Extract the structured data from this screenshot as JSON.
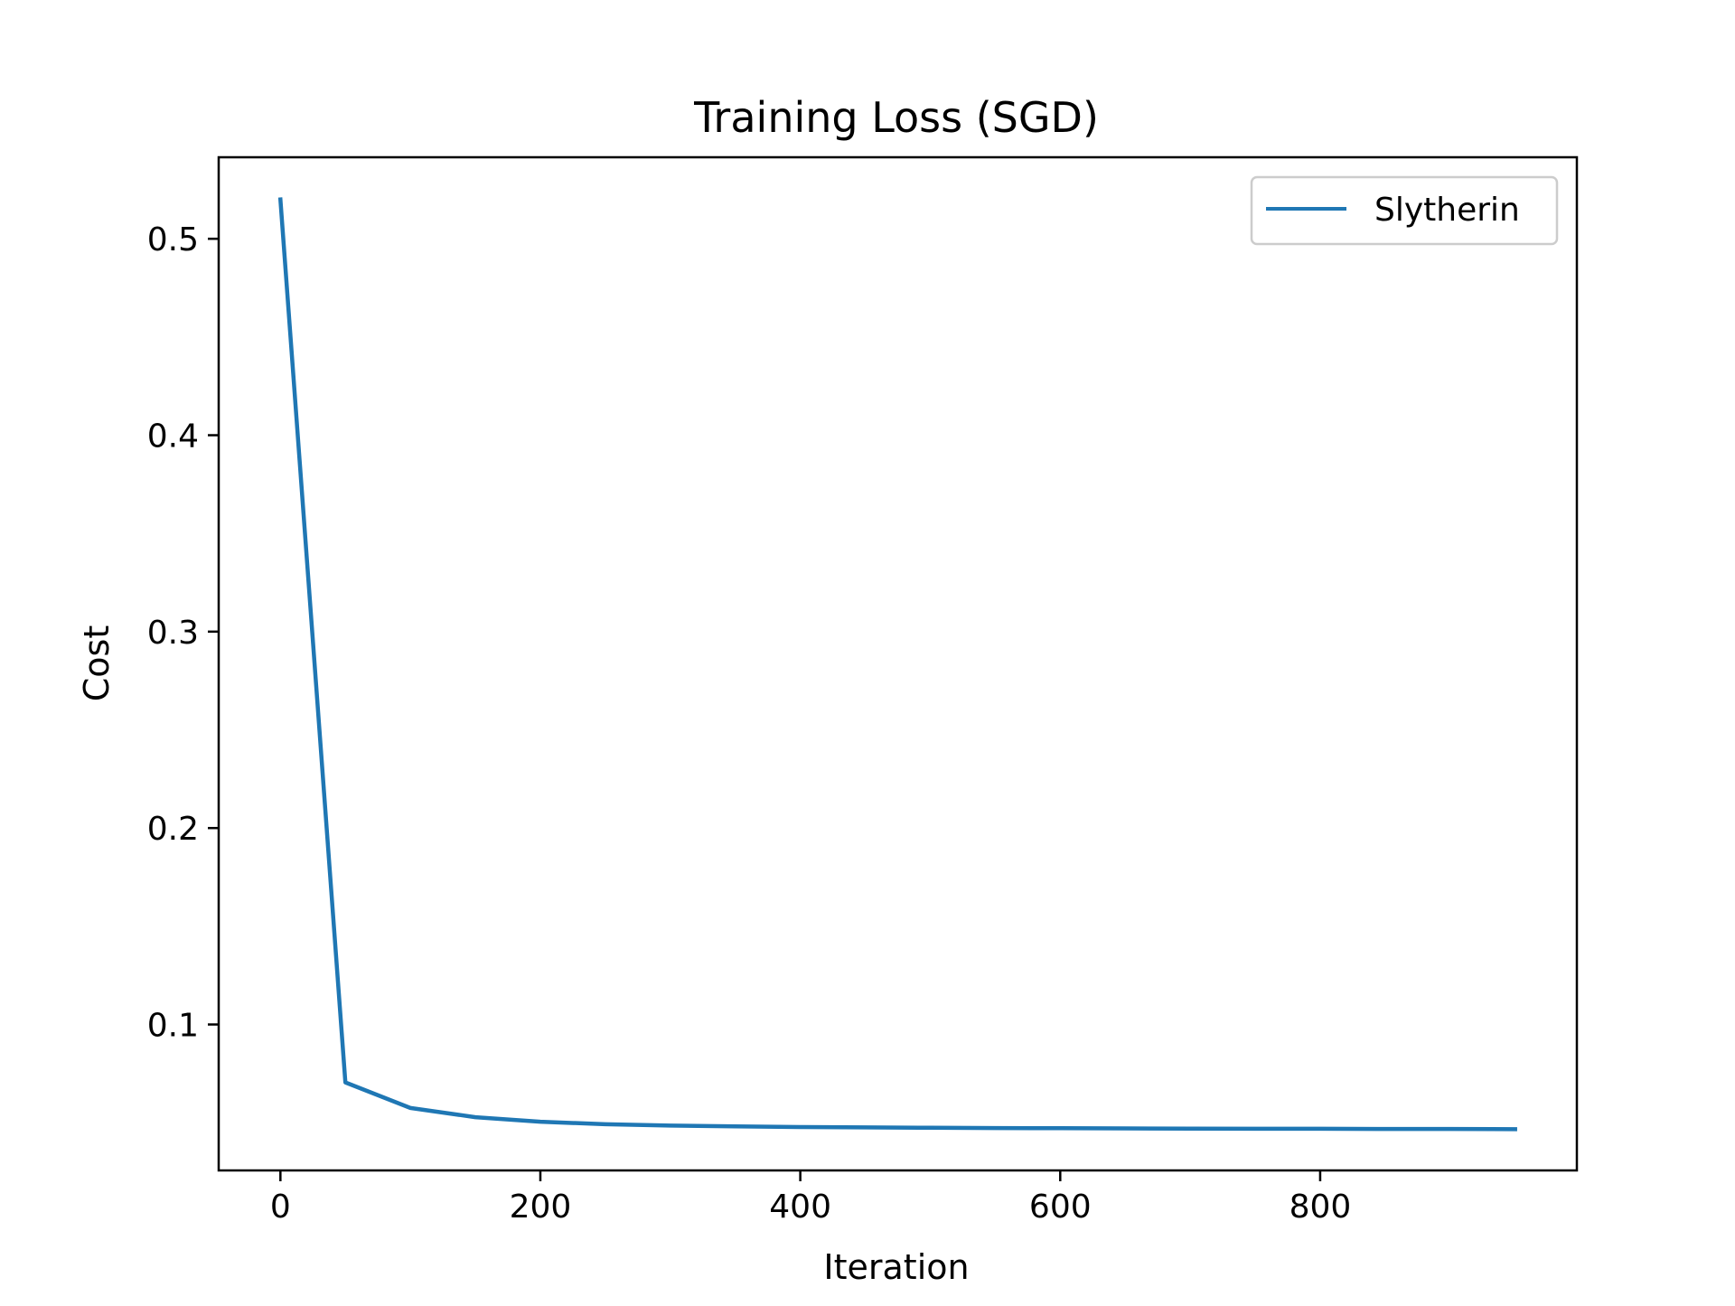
{
  "chart_data": {
    "type": "line",
    "title": "Training Loss (SGD)",
    "xlabel": "Iteration",
    "ylabel": "Cost",
    "xlim": [
      -47.5,
      997.5
    ],
    "ylim": [
      0.0257,
      0.5415
    ],
    "xticks": [
      0,
      200,
      400,
      600,
      800
    ],
    "yticks": [
      0.1,
      0.2,
      0.3,
      0.4,
      0.5
    ],
    "grid": false,
    "legend": {
      "placement": "top-right"
    },
    "series": [
      {
        "name": "Slytherin",
        "color": "#1f77b4",
        "x": [
          0,
          50,
          100,
          150,
          200,
          250,
          300,
          350,
          400,
          450,
          500,
          550,
          600,
          650,
          700,
          750,
          800,
          850,
          900,
          950
        ],
        "y": [
          0.52,
          0.0705,
          0.0575,
          0.0528,
          0.0505,
          0.0492,
          0.0485,
          0.0481,
          0.0478,
          0.0476,
          0.0474,
          0.0473,
          0.0472,
          0.0471,
          0.047,
          0.0469,
          0.0469,
          0.0468,
          0.0468,
          0.0467
        ]
      }
    ]
  }
}
